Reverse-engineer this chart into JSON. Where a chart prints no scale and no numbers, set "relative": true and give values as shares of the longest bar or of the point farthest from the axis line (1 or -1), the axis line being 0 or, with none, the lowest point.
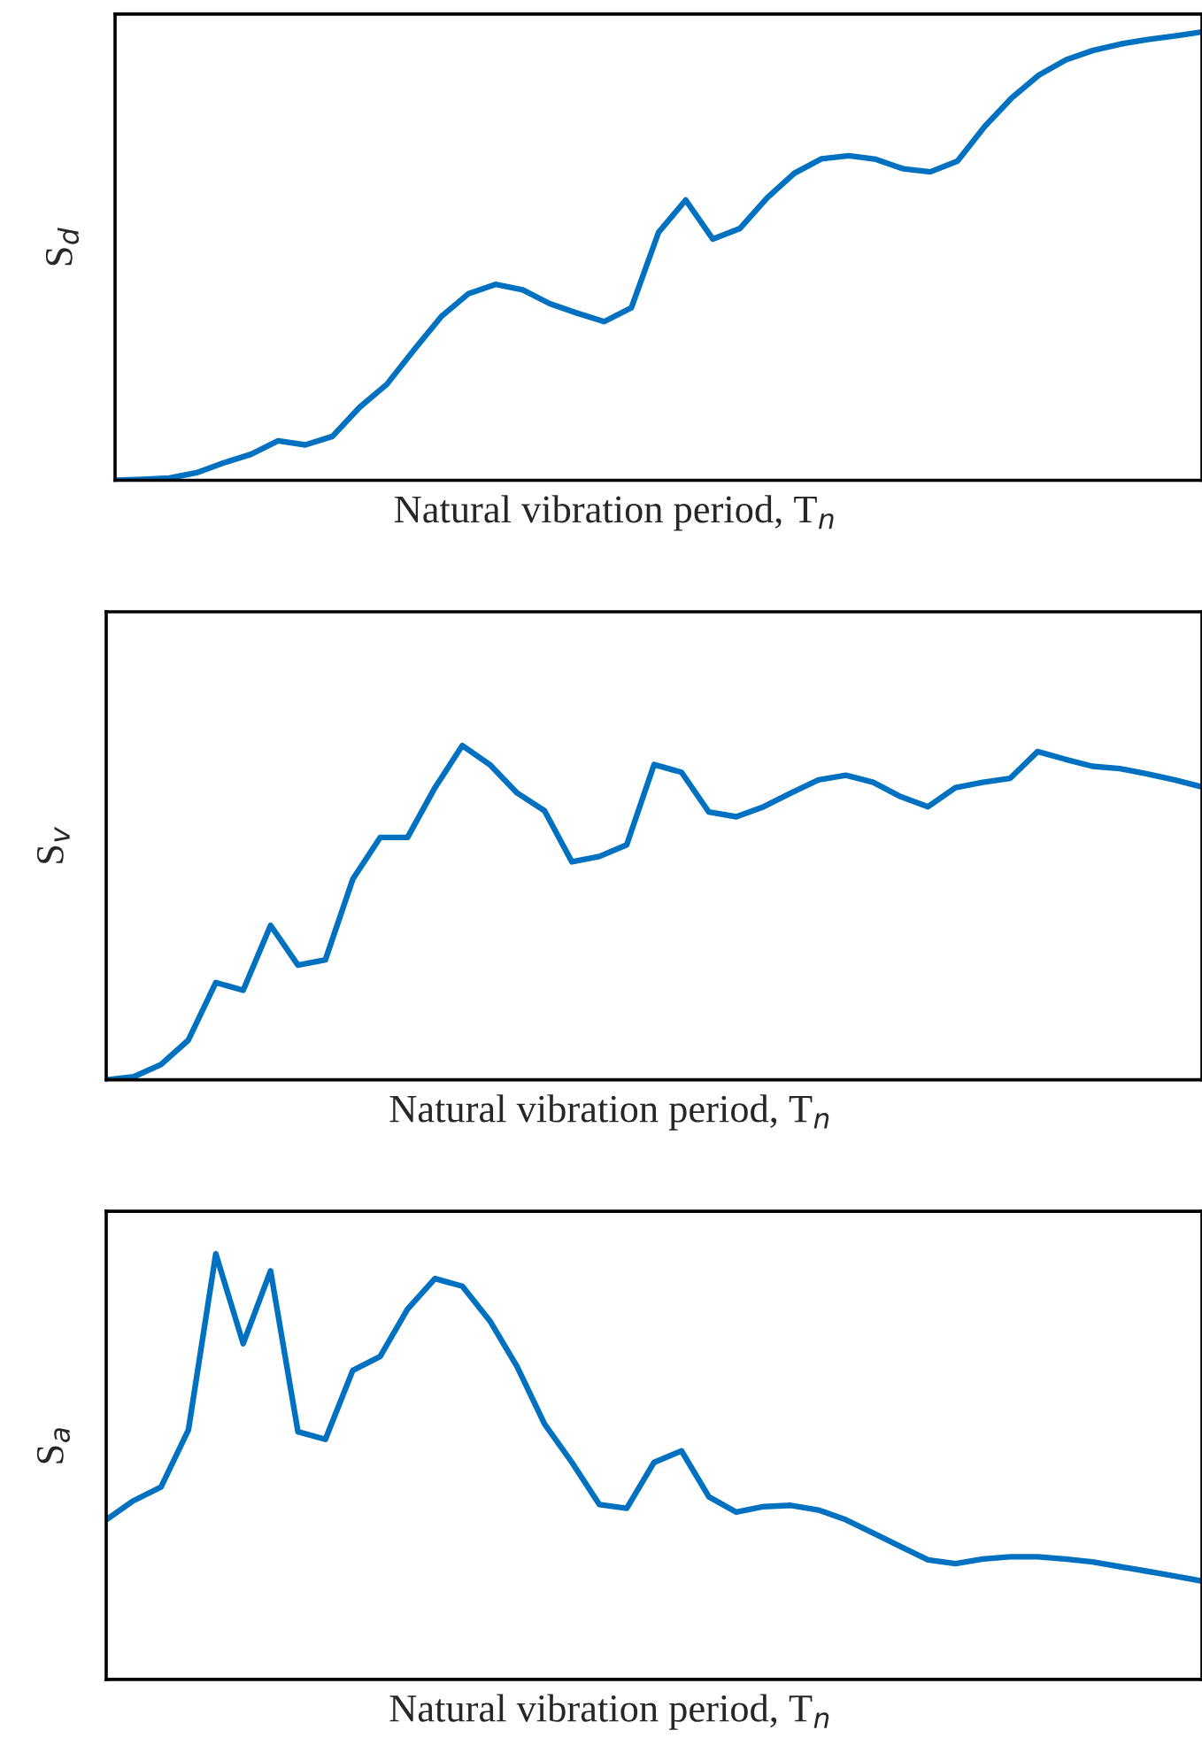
{
  "chart_data": [
    {
      "type": "line",
      "relative": true,
      "tick_labels": false,
      "ylabel": "S$_{d}$",
      "xlabel": "Natural vibration period, T$_{n}$",
      "categories": [
        null,
        null,
        null,
        null,
        null,
        null,
        null,
        null,
        null,
        null,
        null,
        null,
        null,
        null,
        null,
        null,
        null,
        null,
        null,
        null,
        null,
        null,
        null,
        null,
        null,
        null,
        null,
        null,
        null,
        null,
        null,
        null,
        null,
        null,
        null,
        null,
        null,
        null,
        null,
        null,
        null
      ],
      "series": [
        {
          "color": "#0070c0",
          "values": [
            0,
            0.002,
            0.005,
            0.017,
            0.039,
            0.058,
            0.088,
            0.079,
            0.098,
            0.163,
            0.214,
            0.291,
            0.365,
            0.416,
            0.437,
            0.425,
            0.394,
            0.373,
            0.354,
            0.385,
            0.553,
            0.625,
            0.538,
            0.562,
            0.63,
            0.685,
            0.717,
            0.724,
            0.716,
            0.695,
            0.688,
            0.712,
            0.789,
            0.853,
            0.904,
            0.938,
            0.959,
            0.973,
            0.983,
            0.991,
            1
          ]
        }
      ]
    },
    {
      "type": "line",
      "relative": true,
      "tick_labels": false,
      "ylabel": "S$_{v}$",
      "xlabel": "Natural vibration period, T$_{n}$",
      "categories": [
        null,
        null,
        null,
        null,
        null,
        null,
        null,
        null,
        null,
        null,
        null,
        null,
        null,
        null,
        null,
        null,
        null,
        null,
        null,
        null,
        null,
        null,
        null,
        null,
        null,
        null,
        null,
        null,
        null,
        null,
        null,
        null,
        null,
        null,
        null,
        null,
        null,
        null,
        null,
        null,
        null
      ],
      "series": [
        {
          "color": "#0070c0",
          "values": [
            0,
            0.009,
            0.046,
            0.119,
            0.291,
            0.268,
            0.462,
            0.343,
            0.359,
            0.6,
            0.725,
            0.725,
            0.874,
            1,
            0.943,
            0.858,
            0.805,
            0.652,
            0.668,
            0.703,
            0.943,
            0.92,
            0.801,
            0.787,
            0.817,
            0.858,
            0.897,
            0.911,
            0.89,
            0.847,
            0.817,
            0.874,
            0.89,
            0.902,
            0.982,
            0.959,
            0.938,
            0.931,
            0.915,
            0.897,
            0.876
          ]
        }
      ]
    },
    {
      "type": "line",
      "relative": true,
      "tick_labels": false,
      "ylabel": "S$_{a}$",
      "xlabel": "Natural vibration period, T$_{n}$",
      "categories": [
        null,
        null,
        null,
        null,
        null,
        null,
        null,
        null,
        null,
        null,
        null,
        null,
        null,
        null,
        null,
        null,
        null,
        null,
        null,
        null,
        null,
        null,
        null,
        null,
        null,
        null,
        null,
        null,
        null,
        null,
        null,
        null,
        null,
        null,
        null,
        null,
        null,
        null,
        null,
        null,
        null
      ],
      "series": [
        {
          "color": "#0070c0",
          "values": [
            0.375,
            0.42,
            0.452,
            0.586,
            1,
            0.789,
            0.96,
            0.582,
            0.564,
            0.726,
            0.759,
            0.87,
            0.942,
            0.924,
            0.843,
            0.735,
            0.6,
            0.51,
            0.411,
            0.402,
            0.51,
            0.537,
            0.429,
            0.393,
            0.406,
            0.409,
            0.398,
            0.375,
            0.344,
            0.312,
            0.281,
            0.272,
            0.283,
            0.288,
            0.288,
            0.283,
            0.276,
            0.265,
            0.254,
            0.243,
            0.231
          ]
        }
      ]
    }
  ]
}
